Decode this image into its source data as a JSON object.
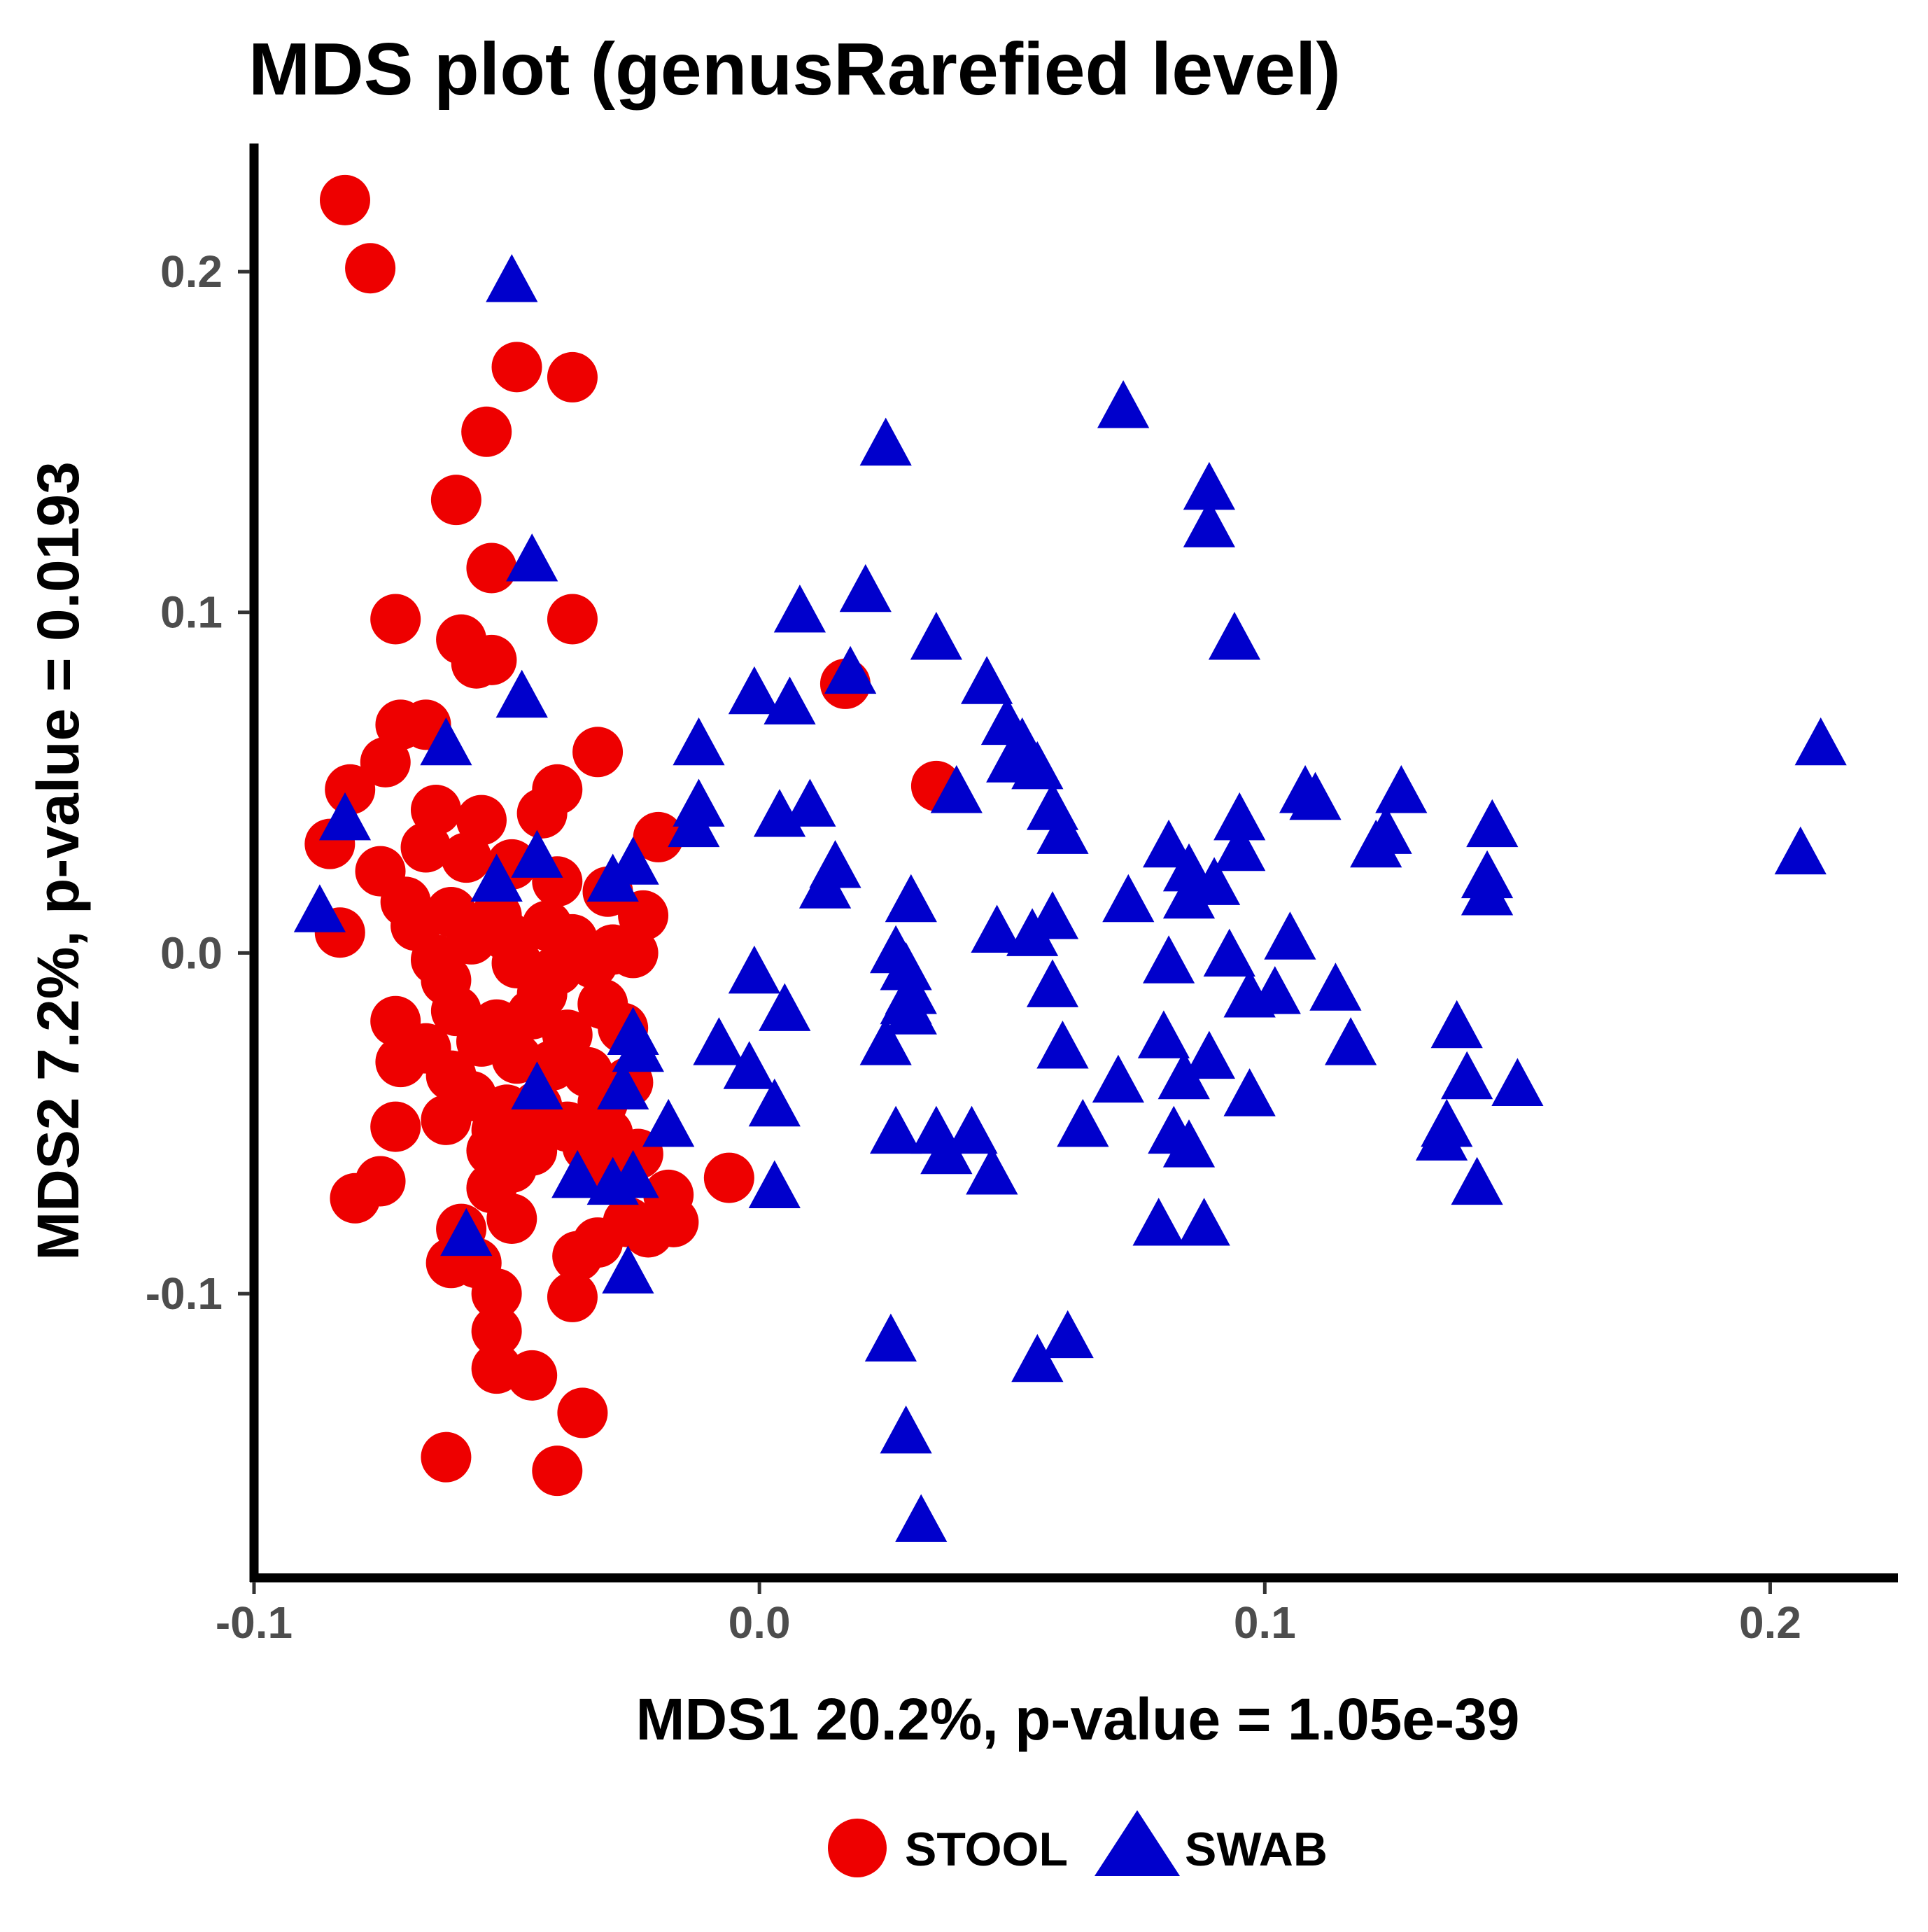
{
  "chart_data": {
    "type": "scatter",
    "title": "MDS plot (genusRarefied level)",
    "xlabel": "MDS1 20.2%, p-value = 1.05e-39",
    "ylabel": "MDS2 7.2%, p-value = 0.0193",
    "xlim": [
      -0.1,
      0.225
    ],
    "ylim": [
      -0.183,
      0.237
    ],
    "xticks": [
      -0.1,
      0.0,
      0.1,
      0.2
    ],
    "xtick_labels": [
      "-0.1",
      "0.0",
      "0.1",
      "0.2"
    ],
    "yticks": [
      -0.1,
      0.0,
      0.1,
      0.2
    ],
    "ytick_labels": [
      "-0.1",
      "0.0",
      "0.1",
      "0.2"
    ],
    "grid": false,
    "legend_position": "bottom",
    "series": [
      {
        "name": "STOOL",
        "marker": "circle",
        "color": "#ee0000",
        "points": [
          [
            -0.082,
            0.221
          ],
          [
            -0.077,
            0.201
          ],
          [
            -0.048,
            0.172
          ],
          [
            -0.037,
            0.169
          ],
          [
            -0.054,
            0.153
          ],
          [
            -0.06,
            0.133
          ],
          [
            -0.053,
            0.113
          ],
          [
            -0.072,
            0.098
          ],
          [
            -0.037,
            0.098
          ],
          [
            -0.059,
            0.092
          ],
          [
            -0.056,
            0.085
          ],
          [
            -0.053,
            0.086
          ],
          [
            -0.071,
            0.067
          ],
          [
            -0.066,
            0.067
          ],
          [
            -0.032,
            0.059
          ],
          [
            -0.074,
            0.056
          ],
          [
            -0.081,
            0.048
          ],
          [
            -0.04,
            0.048
          ],
          [
            -0.064,
            0.042
          ],
          [
            -0.055,
            0.039
          ],
          [
            -0.043,
            0.041
          ],
          [
            -0.02,
            0.034
          ],
          [
            -0.085,
            0.032
          ],
          [
            -0.066,
            0.031
          ],
          [
            -0.058,
            0.028
          ],
          [
            -0.049,
            0.026
          ],
          [
            -0.075,
            0.024
          ],
          [
            -0.04,
            0.021
          ],
          [
            -0.03,
            0.018
          ],
          [
            -0.07,
            0.015
          ],
          [
            -0.061,
            0.012
          ],
          [
            -0.052,
            0.011
          ],
          [
            -0.042,
            0.008
          ],
          [
            -0.023,
            0.011
          ],
          [
            -0.083,
            0.006
          ],
          [
            -0.068,
            0.008
          ],
          [
            -0.057,
            0.004
          ],
          [
            -0.05,
            0.005
          ],
          [
            -0.037,
            0.004
          ],
          [
            -0.029,
            0.001
          ],
          [
            -0.064,
            -0.002
          ],
          [
            -0.048,
            -0.003
          ],
          [
            -0.04,
            -0.005
          ],
          [
            -0.033,
            -0.003
          ],
          [
            -0.025,
            0.0
          ],
          [
            -0.062,
            -0.008
          ],
          [
            -0.043,
            -0.012
          ],
          [
            -0.031,
            -0.015
          ],
          [
            -0.072,
            -0.02
          ],
          [
            -0.06,
            -0.017
          ],
          [
            -0.052,
            -0.021
          ],
          [
            -0.045,
            -0.018
          ],
          [
            -0.038,
            -0.024
          ],
          [
            -0.027,
            -0.022
          ],
          [
            -0.066,
            -0.028
          ],
          [
            -0.055,
            -0.026
          ],
          [
            -0.048,
            -0.031
          ],
          [
            -0.071,
            -0.032
          ],
          [
            -0.061,
            -0.036
          ],
          [
            -0.041,
            -0.033
          ],
          [
            -0.034,
            -0.035
          ],
          [
            -0.026,
            -0.038
          ],
          [
            -0.057,
            -0.042
          ],
          [
            -0.05,
            -0.046
          ],
          [
            -0.044,
            -0.045
          ],
          [
            -0.031,
            -0.044
          ],
          [
            -0.072,
            -0.051
          ],
          [
            -0.062,
            -0.049
          ],
          [
            -0.052,
            -0.052
          ],
          [
            -0.038,
            -0.051
          ],
          [
            -0.03,
            -0.053
          ],
          [
            -0.053,
            -0.058
          ],
          [
            -0.045,
            -0.058
          ],
          [
            -0.034,
            -0.057
          ],
          [
            -0.024,
            -0.059
          ],
          [
            -0.075,
            -0.067
          ],
          [
            -0.049,
            -0.063
          ],
          [
            -0.029,
            -0.064
          ],
          [
            -0.006,
            -0.066
          ],
          [
            -0.08,
            -0.072
          ],
          [
            -0.053,
            -0.069
          ],
          [
            -0.018,
            -0.071
          ],
          [
            -0.059,
            -0.081
          ],
          [
            -0.049,
            -0.078
          ],
          [
            -0.026,
            -0.079
          ],
          [
            -0.017,
            -0.079
          ],
          [
            -0.022,
            -0.082
          ],
          [
            -0.061,
            -0.091
          ],
          [
            -0.036,
            -0.089
          ],
          [
            -0.032,
            -0.085
          ],
          [
            -0.056,
            -0.091
          ],
          [
            -0.052,
            -0.1
          ],
          [
            -0.037,
            -0.101
          ],
          [
            -0.052,
            -0.111
          ],
          [
            -0.052,
            -0.122
          ],
          [
            -0.045,
            -0.124
          ],
          [
            -0.035,
            -0.135
          ],
          [
            -0.062,
            -0.148
          ],
          [
            -0.04,
            -0.152
          ],
          [
            0.017,
            0.079
          ],
          [
            0.035,
            0.049
          ]
        ]
      },
      {
        "name": "SWAB",
        "marker": "triangle",
        "color": "#0000cc",
        "points": [
          [
            -0.049,
            0.197
          ],
          [
            0.072,
            0.16
          ],
          [
            0.025,
            0.149
          ],
          [
            0.089,
            0.136
          ],
          [
            0.089,
            0.125
          ],
          [
            -0.045,
            0.115
          ],
          [
            0.021,
            0.106
          ],
          [
            0.008,
            0.1
          ],
          [
            0.094,
            0.092
          ],
          [
            0.035,
            0.092
          ],
          [
            0.018,
            0.082
          ],
          [
            0.045,
            0.079
          ],
          [
            -0.047,
            0.075
          ],
          [
            -0.001,
            0.076
          ],
          [
            0.006,
            0.073
          ],
          [
            0.049,
            0.067
          ],
          [
            -0.062,
            0.061
          ],
          [
            -0.012,
            0.061
          ],
          [
            0.052,
            0.061
          ],
          [
            0.05,
            0.056
          ],
          [
            0.055,
            0.054
          ],
          [
            0.21,
            0.061
          ],
          [
            0.108,
            0.047
          ],
          [
            0.11,
            0.045
          ],
          [
            0.127,
            0.047
          ],
          [
            0.039,
            0.047
          ],
          [
            0.058,
            0.042
          ],
          [
            0.01,
            0.043
          ],
          [
            0.004,
            0.04
          ],
          [
            -0.012,
            0.043
          ],
          [
            0.095,
            0.039
          ],
          [
            0.124,
            0.035
          ],
          [
            -0.082,
            0.039
          ],
          [
            -0.013,
            0.037
          ],
          [
            0.145,
            0.037
          ],
          [
            0.06,
            0.035
          ],
          [
            0.081,
            0.031
          ],
          [
            0.122,
            0.031
          ],
          [
            0.206,
            0.029
          ],
          [
            -0.044,
            0.028
          ],
          [
            0.095,
            0.03
          ],
          [
            0.144,
            0.022
          ],
          [
            -0.052,
            0.021
          ],
          [
            -0.029,
            0.021
          ],
          [
            -0.025,
            0.026
          ],
          [
            0.085,
            0.024
          ],
          [
            0.09,
            0.02
          ],
          [
            0.015,
            0.025
          ],
          [
            0.144,
            0.017
          ],
          [
            0.073,
            0.015
          ],
          [
            0.013,
            0.019
          ],
          [
            0.03,
            0.015
          ],
          [
            0.085,
            0.016
          ],
          [
            -0.087,
            0.012
          ],
          [
            0.058,
            0.01
          ],
          [
            0.047,
            0.006
          ],
          [
            0.054,
            0.005
          ],
          [
            0.105,
            0.004
          ],
          [
            0.027,
            0.0
          ],
          [
            0.093,
            -0.001
          ],
          [
            -0.001,
            -0.006
          ],
          [
            0.029,
            -0.005
          ],
          [
            0.081,
            -0.003
          ],
          [
            0.114,
            -0.011
          ],
          [
            0.097,
            -0.013
          ],
          [
            0.058,
            -0.01
          ],
          [
            0.03,
            -0.012
          ],
          [
            0.102,
            -0.012
          ],
          [
            0.005,
            -0.017
          ],
          [
            0.029,
            -0.015
          ],
          [
            0.03,
            -0.018
          ],
          [
            -0.025,
            -0.024
          ],
          [
            0.138,
            -0.022
          ],
          [
            0.08,
            -0.025
          ],
          [
            0.089,
            -0.031
          ],
          [
            -0.008,
            -0.027
          ],
          [
            -0.024,
            -0.029
          ],
          [
            0.06,
            -0.028
          ],
          [
            0.025,
            -0.027
          ],
          [
            0.117,
            -0.027
          ],
          [
            -0.002,
            -0.034
          ],
          [
            0.071,
            -0.038
          ],
          [
            -0.044,
            -0.04
          ],
          [
            0.15,
            -0.039
          ],
          [
            0.14,
            -0.037
          ],
          [
            0.084,
            -0.037
          ],
          [
            0.097,
            -0.042
          ],
          [
            0.003,
            -0.045
          ],
          [
            -0.027,
            -0.04
          ],
          [
            0.064,
            -0.051
          ],
          [
            0.035,
            -0.053
          ],
          [
            0.042,
            -0.053
          ],
          [
            0.027,
            -0.053
          ],
          [
            -0.018,
            -0.051
          ],
          [
            0.136,
            -0.051
          ],
          [
            0.082,
            -0.053
          ],
          [
            0.135,
            -0.055
          ],
          [
            0.085,
            -0.057
          ],
          [
            0.037,
            -0.059
          ],
          [
            0.046,
            -0.065
          ],
          [
            -0.036,
            -0.066
          ],
          [
            -0.025,
            -0.066
          ],
          [
            -0.029,
            -0.068
          ],
          [
            0.003,
            -0.069
          ],
          [
            0.142,
            -0.068
          ],
          [
            0.079,
            -0.08
          ],
          [
            0.088,
            -0.08
          ],
          [
            -0.058,
            -0.083
          ],
          [
            -0.026,
            -0.094
          ],
          [
            0.026,
            -0.114
          ],
          [
            0.055,
            -0.12
          ],
          [
            0.061,
            -0.113
          ],
          [
            0.029,
            -0.141
          ],
          [
            0.032,
            -0.167
          ]
        ]
      }
    ]
  }
}
